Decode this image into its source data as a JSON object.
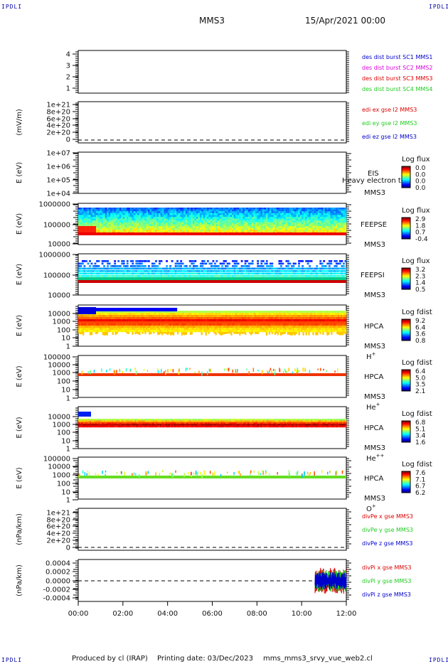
{
  "header": {
    "corner_label": "IPDLI",
    "spacecraft": "MMS3",
    "datetime": "15/Apr/2021 00:00"
  },
  "footer": {
    "produced_by": "Produced by cl (IRAP)",
    "printing_date": "Printing date: 03/Dec/2023",
    "script_name": "mms_mms3_srvy_vue_web2.cl"
  },
  "time_axis": {
    "ticks": [
      "00:00",
      "02:00",
      "04:00",
      "06:00",
      "08:00",
      "10:00",
      "12:00"
    ],
    "range_hours": [
      0,
      12
    ]
  },
  "colors": {
    "black": "#000000",
    "red": "#dd0000",
    "green": "#22cc22",
    "blue": "#0000cc",
    "magenta": "#dd00dd"
  },
  "chart_data": [
    {
      "type": "line",
      "panel": "burst",
      "ylabel": "",
      "ylim": [
        0.5,
        4.5
      ],
      "y_ticks": [
        "1",
        "2",
        "3",
        "4"
      ],
      "series": [
        {
          "name": "des dist burst SC1 MMS1",
          "color": "#0000cc",
          "x": [],
          "y": []
        },
        {
          "name": "des dist burst SC2 MMS2",
          "color": "#dd00dd",
          "x": [],
          "y": []
        },
        {
          "name": "des dist burst SC3 MMS3",
          "color": "#dd0000",
          "x": [],
          "y": []
        },
        {
          "name": "des dist burst SC4 MMS4",
          "color": "#22cc22",
          "x": [],
          "y": []
        }
      ]
    },
    {
      "type": "line",
      "panel": "edi",
      "ylabel": "(mV/m)",
      "y_ticks": [
        "0",
        "2e+20",
        "4e+20",
        "6e+20",
        "8e+20",
        "1e+21"
      ],
      "ylim": [
        0,
        1e+21
      ],
      "zero_line": true,
      "series": [
        {
          "name": "edi ex gse l2 MMS3",
          "color": "#dd0000",
          "x": [],
          "y": []
        },
        {
          "name": "edi ey gse l2 MMS3",
          "color": "#22cc22",
          "x": [],
          "y": []
        },
        {
          "name": "edi ez gse l2 MMS3",
          "color": "#0000cc",
          "x": [],
          "y": []
        }
      ]
    },
    {
      "type": "heatmap",
      "panel": "eis",
      "ylabel": "E (eV)",
      "y_ticks": [
        "1e+04",
        "1e+05",
        "1e+06",
        "1e+07"
      ],
      "ylim": [
        10000,
        10000000
      ],
      "scale": "log",
      "instrument": [
        "EIS",
        "MMS3"
      ],
      "overlay_text": "Heavy electron to",
      "colorbar": {
        "title": "Log flux",
        "ticks": [
          "0.0",
          "0.0",
          "0.0",
          "0.0"
        ]
      },
      "note": "no data"
    },
    {
      "type": "heatmap",
      "panel": "feepse",
      "ylabel": "E (eV)",
      "y_ticks": [
        "10000",
        "100000",
        "1000000"
      ],
      "ylim": [
        10000,
        1000000
      ],
      "scale": "log",
      "instrument": [
        "FEEPSE",
        "MMS3"
      ],
      "colorbar": {
        "title": "Log flux",
        "ticks": [
          "2.9",
          "1.8",
          "0.7",
          "-0.4"
        ]
      }
    },
    {
      "type": "heatmap",
      "panel": "feepsi",
      "ylabel": "E (eV)",
      "y_ticks": [
        "10000",
        "100000",
        "1000000"
      ],
      "ylim": [
        10000,
        1000000
      ],
      "scale": "log",
      "instrument": [
        "FEEPSI",
        "MMS3"
      ],
      "colorbar": {
        "title": "Log flux",
        "ticks": [
          "3.2",
          "2.3",
          "1.4",
          "0.5"
        ]
      }
    },
    {
      "type": "heatmap",
      "panel": "hpca_h",
      "ylabel": "E (eV)",
      "y_ticks": [
        "1",
        "10",
        "100",
        "1000",
        "10000"
      ],
      "ylim": [
        1,
        40000
      ],
      "scale": "log",
      "instrument": [
        "HPCA",
        "MMS3",
        "H+"
      ],
      "colorbar": {
        "title": "Log fdist",
        "ticks": [
          "9.2",
          "6.4",
          "3.6",
          "0.8"
        ]
      }
    },
    {
      "type": "heatmap",
      "panel": "hpca_he",
      "ylabel": "E (eV)",
      "y_ticks": [
        "1",
        "10",
        "100",
        "1000",
        "10000",
        "100000"
      ],
      "ylim": [
        1,
        100000
      ],
      "scale": "log",
      "instrument": [
        "HPCA",
        "MMS3",
        "He+"
      ],
      "colorbar": {
        "title": "Log fdist",
        "ticks": [
          "6.4",
          "5.0",
          "3.5",
          "2.1"
        ]
      }
    },
    {
      "type": "heatmap",
      "panel": "hpca_he2",
      "ylabel": "E (eV)",
      "y_ticks": [
        "1",
        "10",
        "100",
        "1000",
        "10000"
      ],
      "ylim": [
        1,
        40000
      ],
      "scale": "log",
      "instrument": [
        "HPCA",
        "MMS3",
        "He++"
      ],
      "colorbar": {
        "title": "Log fdist",
        "ticks": [
          "6.8",
          "5.1",
          "3.4",
          "1.6"
        ]
      }
    },
    {
      "type": "heatmap",
      "panel": "hpca_o",
      "ylabel": "E (eV)",
      "y_ticks": [
        "1",
        "10",
        "100",
        "1000",
        "10000",
        "100000"
      ],
      "ylim": [
        1,
        100000
      ],
      "scale": "log",
      "instrument": [
        "HPCA",
        "MMS3",
        "O+"
      ],
      "colorbar": {
        "title": "Log fdist",
        "ticks": [
          "7.6",
          "7.1",
          "6.7",
          "6.2"
        ]
      }
    },
    {
      "type": "line",
      "panel": "divpe",
      "ylabel": "(nPa/km)",
      "y_ticks": [
        "0",
        "2e+20",
        "4e+20",
        "6e+20",
        "8e+20",
        "1e+21"
      ],
      "ylim": [
        0,
        1e+21
      ],
      "zero_line": true,
      "series": [
        {
          "name": "divPe x gse MMS3",
          "color": "#dd0000",
          "x": [],
          "y": []
        },
        {
          "name": "divPe y gse MMS3",
          "color": "#22cc22",
          "x": [],
          "y": []
        },
        {
          "name": "divPe z gse MMS3",
          "color": "#0000cc",
          "x": [],
          "y": []
        }
      ]
    },
    {
      "type": "line",
      "panel": "divpi",
      "ylabel": "(nPa/km)",
      "y_ticks": [
        "-0.0004",
        "-0.0002",
        "0.0000",
        "0.0002",
        "0.0004"
      ],
      "ylim": [
        -0.0005,
        0.0005
      ],
      "zero_line": true,
      "data_interval_hours": [
        10.6,
        12.0
      ],
      "series": [
        {
          "name": "divPi x gse MMS3",
          "color": "#dd0000",
          "x": [
            10.6,
            12.0
          ],
          "y_envelope": [
            -0.0003,
            0.0003
          ]
        },
        {
          "name": "divPi y gse MMS3",
          "color": "#22cc22",
          "x": [
            10.6,
            12.0
          ],
          "y_envelope": [
            -0.00025,
            0.00025
          ]
        },
        {
          "name": "divPi z gse MMS3",
          "color": "#0000cc",
          "x": [
            10.6,
            12.0
          ],
          "y_envelope": [
            -0.0002,
            0.0002
          ]
        }
      ]
    }
  ]
}
